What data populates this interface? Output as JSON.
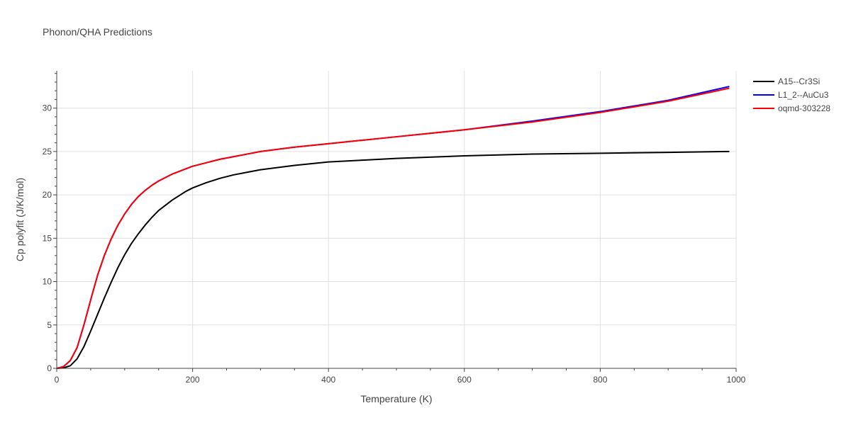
{
  "chart_data": {
    "type": "line",
    "title": "Phonon/QHA Predictions",
    "xlabel": "Temperature (K)",
    "ylabel": "Cp polyfit (J/K/mol)",
    "xlim": [
      0,
      1000
    ],
    "ylim": [
      0,
      34.3
    ],
    "xticks": [
      0,
      200,
      400,
      600,
      800,
      1000
    ],
    "yticks": [
      0,
      5,
      10,
      15,
      20,
      25,
      30
    ],
    "grid": true,
    "legend_position": "top-right",
    "series": [
      {
        "name": "A15--Cr3Si",
        "color": "#000000",
        "x": [
          0,
          10,
          20,
          30,
          40,
          50,
          60,
          70,
          80,
          90,
          100,
          110,
          120,
          130,
          140,
          150,
          160,
          170,
          180,
          190,
          200,
          220,
          240,
          260,
          280,
          300,
          350,
          400,
          450,
          500,
          600,
          700,
          800,
          900,
          990
        ],
        "y": [
          0,
          0.05,
          0.3,
          1.1,
          2.5,
          4.3,
          6.2,
          8.1,
          9.9,
          11.6,
          13.1,
          14.4,
          15.5,
          16.5,
          17.4,
          18.2,
          18.8,
          19.4,
          19.9,
          20.4,
          20.8,
          21.4,
          21.9,
          22.3,
          22.6,
          22.9,
          23.4,
          23.8,
          24.0,
          24.2,
          24.5,
          24.7,
          24.8,
          24.9,
          25.0
        ]
      },
      {
        "name": "L1_2--AuCu3",
        "color": "#0000ff",
        "x": [
          0,
          10,
          20,
          30,
          40,
          50,
          60,
          70,
          80,
          90,
          100,
          110,
          120,
          130,
          140,
          150,
          160,
          170,
          180,
          190,
          200,
          220,
          240,
          260,
          280,
          300,
          350,
          400,
          450,
          500,
          600,
          700,
          800,
          900,
          990
        ],
        "y": [
          0,
          0.2,
          0.9,
          2.4,
          5.0,
          7.9,
          10.7,
          13.0,
          14.9,
          16.5,
          17.8,
          18.9,
          19.8,
          20.5,
          21.1,
          21.6,
          22.0,
          22.4,
          22.7,
          23.0,
          23.3,
          23.7,
          24.1,
          24.4,
          24.7,
          25.0,
          25.5,
          25.9,
          26.3,
          26.7,
          27.5,
          28.5,
          29.6,
          30.9,
          32.5
        ]
      },
      {
        "name": "oqmd-303228",
        "color": "#ff0000",
        "x": [
          0,
          10,
          20,
          30,
          40,
          50,
          60,
          70,
          80,
          90,
          100,
          110,
          120,
          130,
          140,
          150,
          160,
          170,
          180,
          190,
          200,
          220,
          240,
          260,
          280,
          300,
          350,
          400,
          450,
          500,
          600,
          700,
          800,
          900,
          990
        ],
        "y": [
          0,
          0.2,
          0.9,
          2.4,
          5.0,
          7.9,
          10.7,
          13.0,
          14.9,
          16.5,
          17.8,
          18.9,
          19.8,
          20.5,
          21.1,
          21.6,
          22.0,
          22.4,
          22.7,
          23.0,
          23.3,
          23.7,
          24.1,
          24.4,
          24.7,
          25.0,
          25.5,
          25.9,
          26.3,
          26.7,
          27.5,
          28.4,
          29.5,
          30.8,
          32.3
        ]
      }
    ]
  }
}
